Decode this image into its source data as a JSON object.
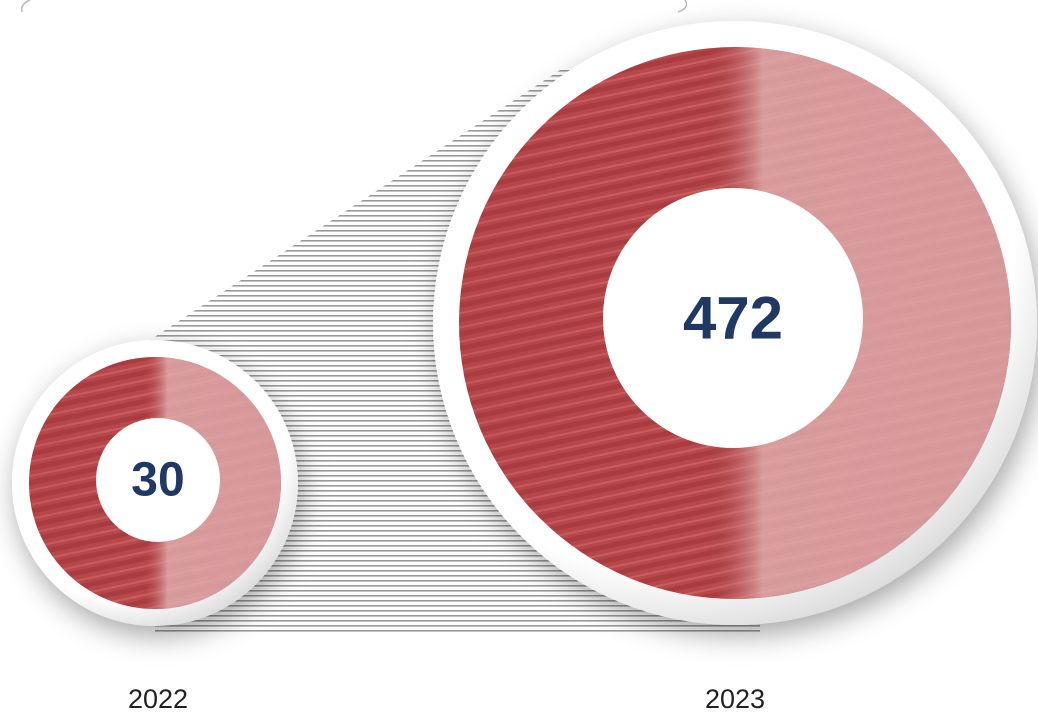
{
  "items": [
    {
      "year": "2022",
      "value": 30
    },
    {
      "year": "2023",
      "value": 472
    }
  ]
}
